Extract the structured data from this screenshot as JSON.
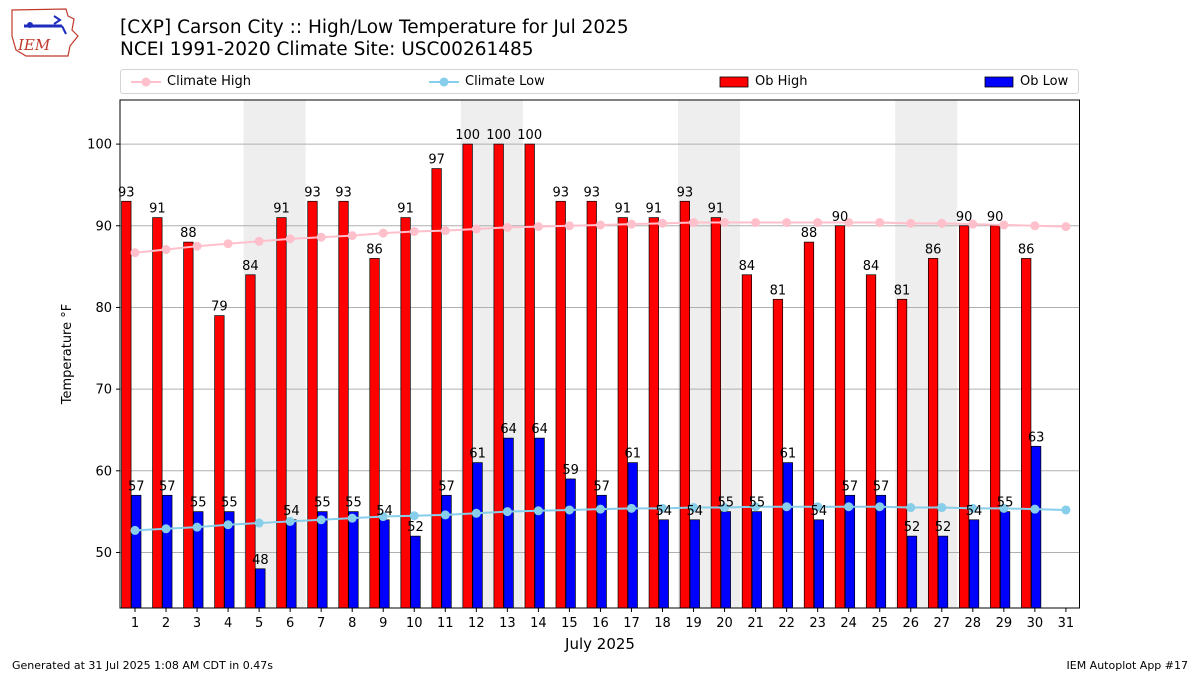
{
  "logo": {
    "text": "IEM"
  },
  "header": {
    "title": "[CXP] Carson City :: High/Low Temperature for Jul 2025",
    "subtitle": "NCEI 1991-2020 Climate Site: USC00261485"
  },
  "legend": {
    "climate_high": "Climate High",
    "climate_low": "Climate Low",
    "ob_high": "Ob High",
    "ob_low": "Ob Low"
  },
  "colors": {
    "ob_high": "#ff0000",
    "ob_low": "#0000ff",
    "climate_high": "#ffc0cb",
    "climate_low": "#87ceeb",
    "weekend_shade": "#eeeeee",
    "grid": "#b0b0b0"
  },
  "footer": {
    "left": "Generated at 31 Jul 2025 1:08 AM CDT in 0.47s",
    "right": "IEM Autoplot App #17"
  },
  "chart_data": {
    "type": "bar",
    "title": "[CXP] Carson City :: High/Low Temperature for Jul 2025",
    "subtitle": "NCEI 1991-2020 Climate Site: USC00261485",
    "xlabel": "July 2025",
    "ylabel": "Temperature °F",
    "ylim": [
      43.2,
      105.4
    ],
    "yticks": [
      50,
      60,
      70,
      80,
      90,
      100
    ],
    "grid": true,
    "legend_position": "top",
    "categories": [
      "1",
      "2",
      "3",
      "4",
      "5",
      "6",
      "7",
      "8",
      "9",
      "10",
      "11",
      "12",
      "13",
      "14",
      "15",
      "16",
      "17",
      "18",
      "19",
      "20",
      "21",
      "22",
      "23",
      "24",
      "25",
      "26",
      "27",
      "28",
      "29",
      "30",
      "31"
    ],
    "weekend_bands": [
      [
        5,
        6
      ],
      [
        12,
        13
      ],
      [
        19,
        20
      ],
      [
        26,
        27
      ]
    ],
    "series": [
      {
        "name": "Ob High",
        "kind": "bar",
        "values": [
          93,
          91,
          88,
          79,
          84,
          91,
          93,
          93,
          86,
          91,
          97,
          100,
          100,
          100,
          93,
          93,
          91,
          91,
          93,
          91,
          84,
          81,
          88,
          90,
          84,
          81,
          86,
          90,
          90,
          86,
          null
        ]
      },
      {
        "name": "Ob Low",
        "kind": "bar",
        "values": [
          57,
          57,
          55,
          55,
          48,
          54,
          55,
          55,
          54,
          52,
          57,
          61,
          64,
          64,
          59,
          57,
          61,
          54,
          54,
          55,
          55,
          61,
          54,
          57,
          57,
          52,
          52,
          54,
          55,
          63,
          null
        ]
      },
      {
        "name": "Climate High",
        "kind": "line",
        "values": [
          86.7,
          87.1,
          87.5,
          87.8,
          88.1,
          88.4,
          88.6,
          88.8,
          89.1,
          89.3,
          89.4,
          89.6,
          89.8,
          89.9,
          90.0,
          90.1,
          90.2,
          90.3,
          90.4,
          90.4,
          90.4,
          90.4,
          90.4,
          90.4,
          90.4,
          90.3,
          90.3,
          90.2,
          90.1,
          90.0,
          89.9
        ]
      },
      {
        "name": "Climate Low",
        "kind": "line",
        "values": [
          52.7,
          52.9,
          53.1,
          53.4,
          53.6,
          53.8,
          54.0,
          54.2,
          54.4,
          54.5,
          54.6,
          54.8,
          55.0,
          55.1,
          55.2,
          55.3,
          55.4,
          55.4,
          55.5,
          55.5,
          55.6,
          55.6,
          55.6,
          55.6,
          55.6,
          55.5,
          55.5,
          55.4,
          55.4,
          55.3,
          55.2
        ]
      }
    ]
  }
}
